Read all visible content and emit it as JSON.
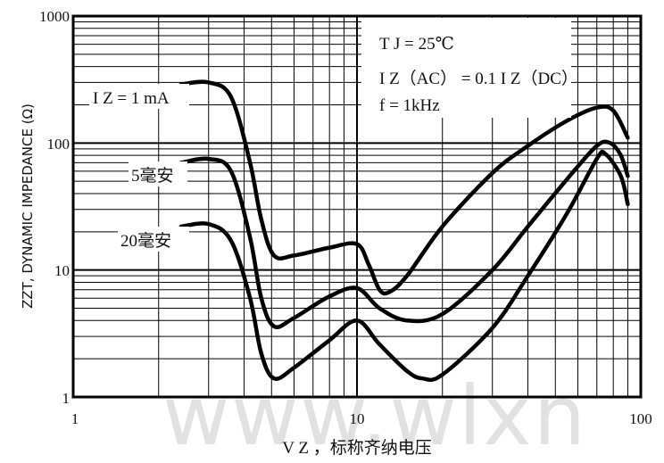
{
  "chart_data": {
    "type": "line",
    "title": "",
    "xlabel": "V Z ，标称齐纳电压",
    "ylabel": "ZZT, DYNAMIC IMPEDANCE (Ω)",
    "x_scale": "log",
    "y_scale": "log",
    "xlim": [
      1,
      100
    ],
    "ylim": [
      1,
      1000
    ],
    "x_ticks": [
      "1",
      "10",
      "100"
    ],
    "y_ticks": [
      "1000",
      "100",
      "10",
      "1"
    ],
    "grid": true,
    "annotations": [
      "T J = 25℃",
      "I Z（AC） = 0.1 I Z（DC）",
      "f = 1kHz"
    ],
    "series": [
      {
        "name": "I Z = 1 mA",
        "points": [
          [
            2.4,
            290
          ],
          [
            3.0,
            300
          ],
          [
            3.6,
            230
          ],
          [
            4.2,
            70
          ],
          [
            4.6,
            25
          ],
          [
            5.1,
            13
          ],
          [
            6.0,
            13
          ],
          [
            8.0,
            15
          ],
          [
            10.0,
            16
          ],
          [
            11.0,
            11
          ],
          [
            12.0,
            7
          ],
          [
            13.0,
            6.7
          ],
          [
            15.0,
            9
          ],
          [
            20.0,
            22
          ],
          [
            30.0,
            58
          ],
          [
            40.0,
            95
          ],
          [
            55.0,
            150
          ],
          [
            70.0,
            190
          ],
          [
            80.0,
            180
          ],
          [
            90.0,
            110
          ]
        ]
      },
      {
        "name": "5毫安",
        "points": [
          [
            2.4,
            70
          ],
          [
            3.0,
            75
          ],
          [
            3.6,
            60
          ],
          [
            4.2,
            18
          ],
          [
            4.6,
            6
          ],
          [
            5.1,
            3.6
          ],
          [
            6.0,
            4.2
          ],
          [
            8.0,
            6.2
          ],
          [
            10.0,
            7.2
          ],
          [
            12.0,
            5
          ],
          [
            15.0,
            4
          ],
          [
            20.0,
            4.5
          ],
          [
            30.0,
            10
          ],
          [
            40.0,
            22
          ],
          [
            55.0,
            52
          ],
          [
            70.0,
            95
          ],
          [
            78.0,
            100
          ],
          [
            85.0,
            80
          ],
          [
            90.0,
            55
          ]
        ]
      },
      {
        "name": "20毫安",
        "points": [
          [
            2.4,
            22
          ],
          [
            3.0,
            23
          ],
          [
            3.6,
            17
          ],
          [
            4.2,
            6
          ],
          [
            4.6,
            2.2
          ],
          [
            5.1,
            1.4
          ],
          [
            6.0,
            1.7
          ],
          [
            8.0,
            2.8
          ],
          [
            10.0,
            4
          ],
          [
            12.0,
            2.6
          ],
          [
            15.0,
            1.6
          ],
          [
            17.0,
            1.4
          ],
          [
            20.0,
            1.5
          ],
          [
            30.0,
            3.5
          ],
          [
            40.0,
            9
          ],
          [
            55.0,
            28
          ],
          [
            70.0,
            75
          ],
          [
            75.0,
            82
          ],
          [
            85.0,
            55
          ],
          [
            90.0,
            33
          ]
        ]
      }
    ]
  },
  "watermark": "www.wlxn"
}
